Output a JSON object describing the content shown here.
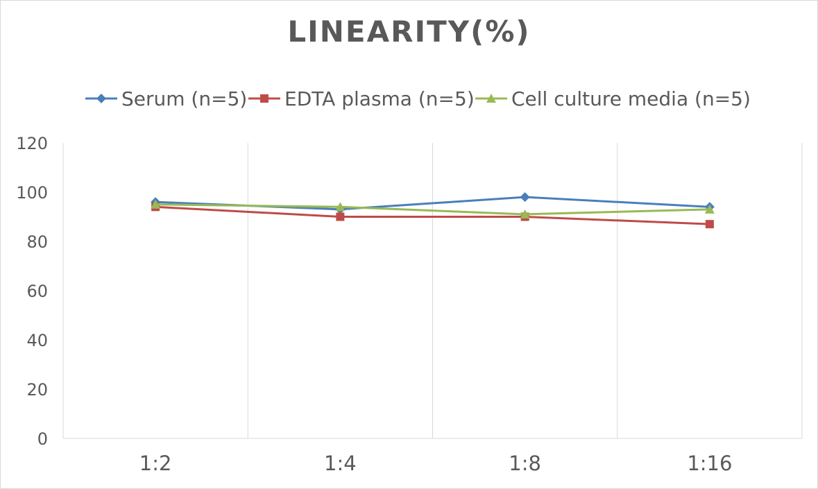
{
  "chart_data": {
    "type": "line",
    "title": "LINEARITY(%)",
    "xlabel": "",
    "ylabel": "",
    "categories": [
      "1:2",
      "1:4",
      "1:8",
      "1:16"
    ],
    "ylim": [
      0,
      120
    ],
    "yticks": [
      0,
      20,
      40,
      60,
      80,
      100,
      120
    ],
    "grid": "vertical",
    "legend_position": "top",
    "series": [
      {
        "name": "Serum (n=5)",
        "values": [
          96,
          93,
          98,
          94
        ],
        "color": "#4a7ebb",
        "marker": "diamond"
      },
      {
        "name": "EDTA plasma (n=5)",
        "values": [
          94,
          90,
          90,
          87
        ],
        "color": "#be4b48",
        "marker": "square"
      },
      {
        "name": "Cell culture media (n=5)",
        "values": [
          95,
          94,
          91,
          93
        ],
        "color": "#98b954",
        "marker": "triangle"
      }
    ]
  }
}
